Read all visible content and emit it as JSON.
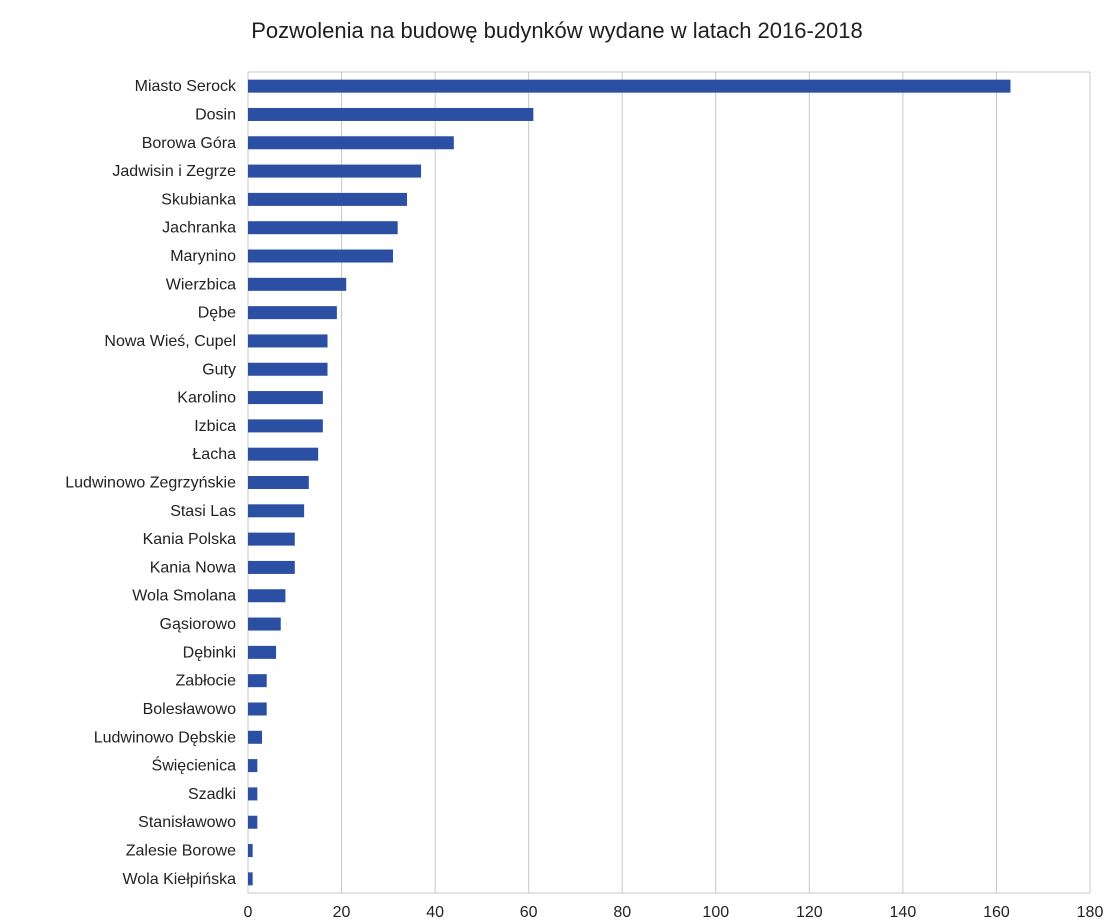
{
  "chart_data": {
    "type": "bar",
    "orientation": "horizontal",
    "title": "Pozwolenia na budowę budynków wydane w latach 2016-2018",
    "xlabel": "",
    "ylabel": "",
    "xlim": [
      0,
      180
    ],
    "xticks": [
      0,
      20,
      40,
      60,
      80,
      100,
      120,
      140,
      160,
      180
    ],
    "grid": "vertical",
    "legend": "none",
    "bar_color": "#2b4fa3",
    "categories": [
      "Miasto Serock",
      "Dosin",
      "Borowa Góra",
      "Jadwisin i Zegrze",
      "Skubianka",
      "Jachranka",
      "Marynino",
      "Wierzbica",
      "Dębe",
      "Nowa Wieś, Cupel",
      "Guty",
      "Karolino",
      "Izbica",
      "Łacha",
      "Ludwinowo Zegrzyńskie",
      "Stasi Las",
      "Kania Polska",
      "Kania Nowa",
      "Wola Smolana",
      "Gąsiorowo",
      "Dębinki",
      "Zabłocie",
      "Bolesławowo",
      "Ludwinowo Dębskie",
      "Święcienica",
      "Szadki",
      "Stanisławowo",
      "Zalesie Borowe",
      "Wola Kiełpińska"
    ],
    "values": [
      163,
      61,
      44,
      37,
      34,
      32,
      31,
      21,
      19,
      17,
      17,
      16,
      16,
      15,
      13,
      12,
      10,
      10,
      8,
      7,
      6,
      4,
      4,
      3,
      2,
      2,
      2,
      1,
      1
    ]
  }
}
